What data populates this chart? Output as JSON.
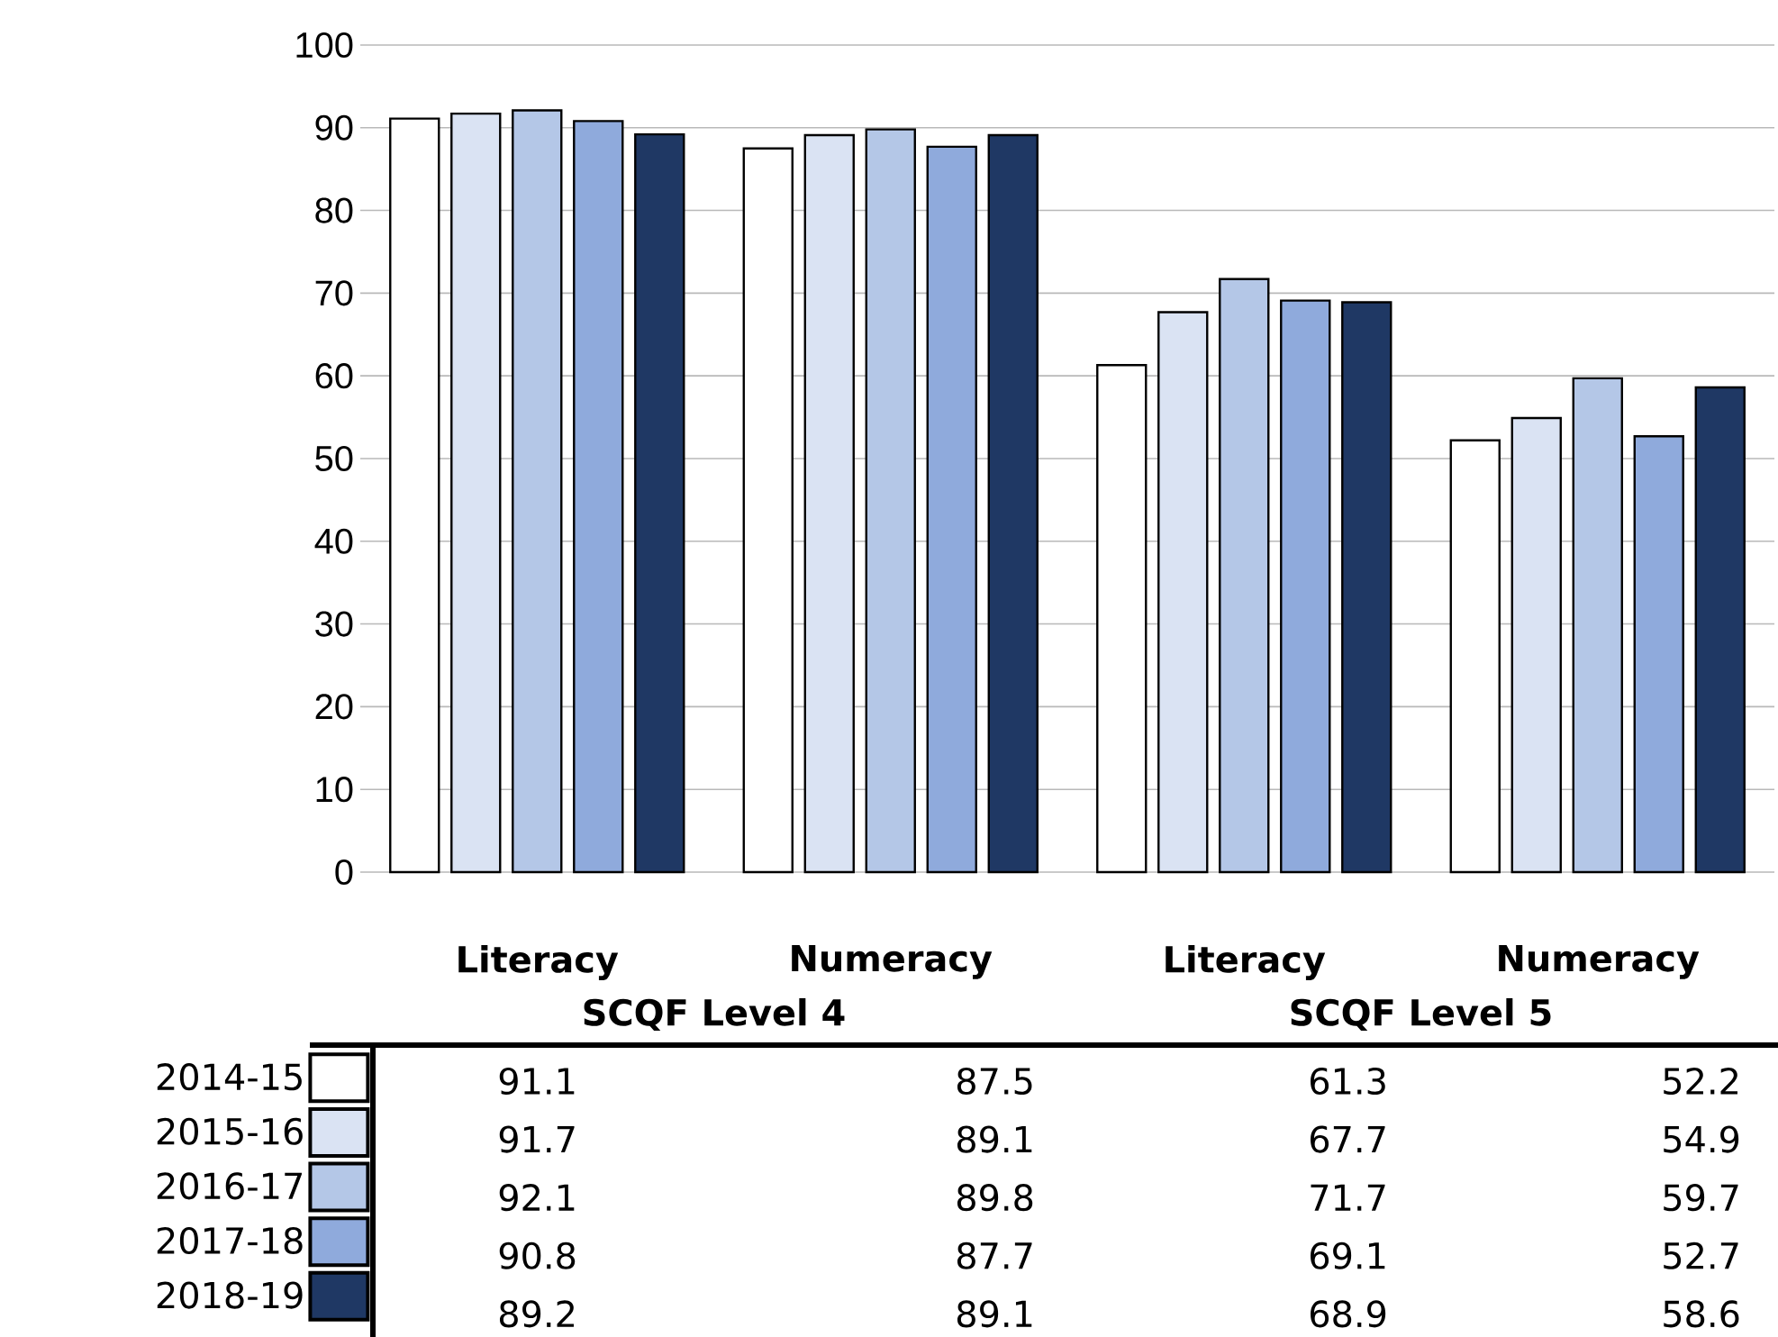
{
  "chart_data": {
    "type": "bar",
    "categories": [
      "Literacy",
      "Numeracy",
      "Literacy",
      "Numeracy"
    ],
    "annotations": [
      "SCQF Level 4",
      "SCQF Level 5"
    ],
    "series": [
      {
        "name": "2014-15",
        "color": "#ffffff",
        "values": [
          91.1,
          87.5,
          61.3,
          52.2
        ]
      },
      {
        "name": "2015-16",
        "color": "#dae3f3",
        "values": [
          91.7,
          89.1,
          67.7,
          54.9
        ]
      },
      {
        "name": "2016-17",
        "color": "#b4c7e7",
        "values": [
          92.1,
          89.8,
          71.7,
          59.7
        ]
      },
      {
        "name": "2017-18",
        "color": "#8faadc",
        "values": [
          90.8,
          87.7,
          69.1,
          52.7
        ]
      },
      {
        "name": "2018-19",
        "color": "#1f3864",
        "values": [
          89.2,
          89.1,
          68.9,
          58.6
        ]
      }
    ],
    "ylim": [
      0,
      100
    ],
    "yticks": [
      0,
      10,
      20,
      30,
      40,
      50,
      60,
      70,
      80,
      90,
      100
    ],
    "grid": "y",
    "legend": "bottom",
    "data_labels": true
  }
}
